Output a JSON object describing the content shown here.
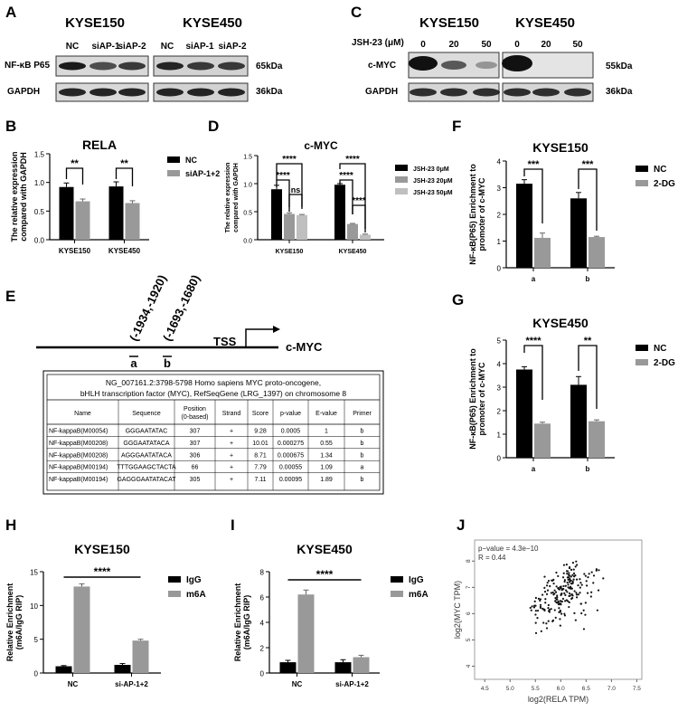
{
  "colors": {
    "black": "#000000",
    "gray": "#999999",
    "band": "#1a1a1a",
    "blot_bg": "#d8d8d8"
  },
  "panels": {
    "A": "A",
    "B": "B",
    "C": "C",
    "D": "D",
    "E": "E",
    "F": "F",
    "G": "G",
    "H": "H",
    "I": "I",
    "J": "J"
  },
  "panelA": {
    "cell1": "KYSE150",
    "cell2": "KYSE450",
    "lanes1": [
      "NC",
      "siAP-1",
      "siAP-2"
    ],
    "lanes2": [
      "NC",
      "siAP-1",
      "siAP-2"
    ],
    "row1": "NF-κB P65",
    "row2": "GAPDH",
    "mw1": "65kDa",
    "mw2": "36kDa"
  },
  "panelC": {
    "cell1": "KYSE150",
    "cell2": "KYSE450",
    "treat": "JSH-23 (μM)",
    "lanes1": [
      "0",
      "20",
      "50"
    ],
    "lanes2": [
      "0",
      "20",
      "50"
    ],
    "row1": "c-MYC",
    "row2": "GAPDH",
    "mw1": "55kDa",
    "mw2": "36kDa"
  },
  "panelE": {
    "site1": "(-1934,-1920)",
    "site2": "(-1693,-1680)",
    "tss": "TSS",
    "gene": "c-MYC",
    "marker_a": "a",
    "marker_b": "b",
    "table_title1": "NG_007161.2:3798-5798 Homo sapiens MYC proto-oncogene,",
    "table_title2": "bHLH transcription factor (MYC), RefSeqGene (LRG_1397) on chromosome 8",
    "headers": [
      "Name",
      "Sequence",
      "Position (0-based)",
      "Strand",
      "Score",
      "p-value",
      "E-value",
      "Primer"
    ],
    "rows": [
      [
        "NF-kappaB(M00054)",
        "GGGAATATAC",
        "307",
        "+",
        "9.28",
        "0.0005",
        "1",
        "b"
      ],
      [
        "NF-kappaB(M00208)",
        "GGGAATATACA",
        "307",
        "+",
        "10.01",
        "0.000275",
        "0.55",
        "b"
      ],
      [
        "NF-kappaB(M00208)",
        "AGGGAATATACA",
        "306",
        "+",
        "8.71",
        "0.000675",
        "1.34",
        "b"
      ],
      [
        "NF-kappaB(M00194)",
        "TTTGGAAGCTACTA",
        "66",
        "+",
        "7.79",
        "0.00055",
        "1.09",
        "a"
      ],
      [
        "NF-kappaB(M00194)",
        "GAGGGAATATACAT",
        "305",
        "+",
        "7.11",
        "0.00095",
        "1.89",
        "b"
      ]
    ]
  },
  "chart_data": [
    {
      "panel": "B",
      "type": "bar",
      "title": "RELA",
      "ylabel": "The relative expression compared with GAPDH",
      "categories": [
        "KYSE150",
        "KYSE450"
      ],
      "ylim": [
        0,
        1.5
      ],
      "yticks": [
        "0.0",
        "0.5",
        "1.0",
        "1.5"
      ],
      "series": [
        {
          "name": "NC",
          "color": "#000000",
          "values": [
            0.92,
            0.93
          ],
          "err": [
            0.07,
            0.08
          ]
        },
        {
          "name": "siAP-1+2",
          "color": "#999999",
          "values": [
            0.67,
            0.64
          ],
          "err": [
            0.04,
            0.04
          ]
        }
      ],
      "sig": [
        "**",
        "**"
      ],
      "legend": "right"
    },
    {
      "panel": "D",
      "type": "bar",
      "title": "c-MYC",
      "ylabel": "The relative expression compared with GAPDH",
      "categories": [
        "KYSE150",
        "KYSE450"
      ],
      "ylim": [
        0,
        1.5
      ],
      "yticks": [
        "0.0",
        "0.5",
        "1.0",
        "1.5"
      ],
      "series": [
        {
          "name": "JSH-23 0μM",
          "color": "#000000",
          "values": [
            0.9,
            0.98
          ],
          "err": [
            0.07,
            0.02
          ]
        },
        {
          "name": "JSH-23 20μM",
          "color": "#999999",
          "values": [
            0.46,
            0.28
          ],
          "err": [
            0.02,
            0.01
          ]
        },
        {
          "name": "JSH-23 50μM",
          "color": "#bfbfbf",
          "values": [
            0.44,
            0.09
          ],
          "err": [
            0.01,
            0.01
          ]
        }
      ],
      "sig": [
        "****",
        "****",
        "ns",
        "****",
        "****",
        "****"
      ],
      "legend": "right"
    },
    {
      "panel": "F",
      "type": "bar",
      "title": "KYSE150",
      "ylabel": "NF-κB(P65) Enrichment to promoter of c-MYC",
      "categories": [
        "a",
        "b"
      ],
      "ylim": [
        0,
        4
      ],
      "yticks": [
        "0",
        "1",
        "2",
        "3",
        "4"
      ],
      "series": [
        {
          "name": "NC",
          "color": "#000000",
          "values": [
            3.15,
            2.6
          ],
          "err": [
            0.15,
            0.22
          ]
        },
        {
          "name": "2-DG",
          "color": "#999999",
          "values": [
            1.12,
            1.15
          ],
          "err": [
            0.18,
            0.03
          ]
        }
      ],
      "sig": [
        "***",
        "***"
      ],
      "legend": "right"
    },
    {
      "panel": "G",
      "type": "bar",
      "title": "KYSE450",
      "ylabel": "NF-κB(P65) Enrichment to promoter of c-MYC",
      "categories": [
        "a",
        "b"
      ],
      "ylim": [
        0,
        5
      ],
      "yticks": [
        "0",
        "1",
        "2",
        "3",
        "4",
        "5"
      ],
      "series": [
        {
          "name": "NC",
          "color": "#000000",
          "values": [
            3.75,
            3.1
          ],
          "err": [
            0.12,
            0.35
          ]
        },
        {
          "name": "2-DG",
          "color": "#999999",
          "values": [
            1.45,
            1.55
          ],
          "err": [
            0.06,
            0.06
          ]
        }
      ],
      "sig": [
        "****",
        "**"
      ],
      "legend": "right"
    },
    {
      "panel": "H",
      "type": "bar",
      "title": "KYSE150",
      "ylabel": "Relative Enrichment (m6A/IgG RIP)",
      "categories": [
        "NC",
        "si-AP-1+2"
      ],
      "ylim": [
        0,
        15
      ],
      "yticks": [
        "0",
        "5",
        "10",
        "15"
      ],
      "series": [
        {
          "name": "IgG",
          "color": "#000000",
          "values": [
            1.0,
            1.2
          ],
          "err": [
            0.1,
            0.2
          ]
        },
        {
          "name": "m6A",
          "color": "#999999",
          "values": [
            12.8,
            4.8
          ],
          "err": [
            0.4,
            0.2
          ]
        }
      ],
      "sig": [
        "****"
      ],
      "legend": "right"
    },
    {
      "panel": "I",
      "type": "bar",
      "title": "KYSE450",
      "ylabel": "Relative Enrichment (m6A/IgG RIP)",
      "categories": [
        "NC",
        "si-AP-1+2"
      ],
      "ylim": [
        0,
        8
      ],
      "yticks": [
        "0",
        "2",
        "4",
        "6",
        "8"
      ],
      "series": [
        {
          "name": "IgG",
          "color": "#000000",
          "values": [
            0.85,
            0.85
          ],
          "err": [
            0.15,
            0.2
          ]
        },
        {
          "name": "m6A",
          "color": "#999999",
          "values": [
            6.2,
            1.25
          ],
          "err": [
            0.35,
            0.15
          ]
        }
      ],
      "sig": [
        "****"
      ],
      "legend": "right"
    },
    {
      "panel": "J",
      "type": "scatter",
      "xlabel": "log2(RELA TPM)",
      "ylabel": "log2(MYC TPM)",
      "xlim": [
        4.3,
        7.6
      ],
      "ylim": [
        3.5,
        8.8
      ],
      "xticks": [
        "4.5",
        "5.0",
        "5.5",
        "6.0",
        "6.5",
        "7.0",
        "7.5"
      ],
      "yticks": [
        "4",
        "5",
        "6",
        "7",
        "8"
      ],
      "annot1": "p−value = 4.3e−10",
      "annot2": "R = 0.44"
    }
  ]
}
